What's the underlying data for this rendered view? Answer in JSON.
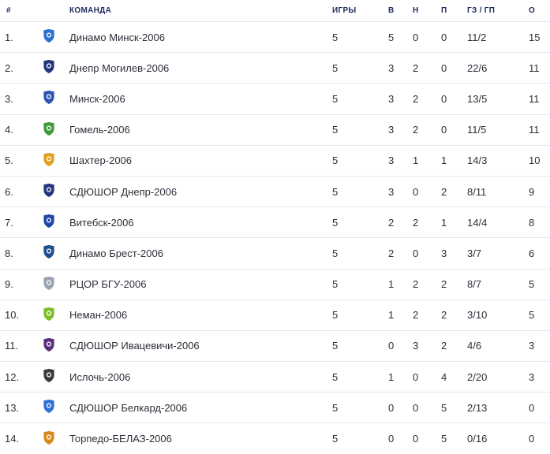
{
  "headers": {
    "num": "#",
    "team": "КОМАНДА",
    "games": "ИГРЫ",
    "wins": "В",
    "draws": "Н",
    "losses": "П",
    "goals": "ГЗ / ГП",
    "points": "О"
  },
  "rows": [
    {
      "num": "1.",
      "name": "Динамо Минск-2006",
      "games": "5",
      "w": "5",
      "d": "0",
      "l": "0",
      "goals": "11/2",
      "pts": "15",
      "icon": "dinamo-minsk-logo-icon",
      "color": "#2a6fd1"
    },
    {
      "num": "2.",
      "name": "Днепр Могилев-2006",
      "games": "5",
      "w": "3",
      "d": "2",
      "l": "0",
      "goals": "22/6",
      "pts": "11",
      "icon": "dnepr-mogilev-logo-icon",
      "color": "#23357e"
    },
    {
      "num": "3.",
      "name": "Минск-2006",
      "games": "5",
      "w": "3",
      "d": "2",
      "l": "0",
      "goals": "13/5",
      "pts": "11",
      "icon": "minsk-logo-icon",
      "color": "#2b54b0"
    },
    {
      "num": "4.",
      "name": "Гомель-2006",
      "games": "5",
      "w": "3",
      "d": "2",
      "l": "0",
      "goals": "11/5",
      "pts": "11",
      "icon": "gomel-logo-icon",
      "color": "#3f9a3a"
    },
    {
      "num": "5.",
      "name": "Шахтер-2006",
      "games": "5",
      "w": "3",
      "d": "1",
      "l": "1",
      "goals": "14/3",
      "pts": "10",
      "icon": "shakhter-logo-icon",
      "color": "#e0a020"
    },
    {
      "num": "6.",
      "name": "СДЮШОР Днепр-2006",
      "games": "5",
      "w": "3",
      "d": "0",
      "l": "2",
      "goals": "8/11",
      "pts": "9",
      "icon": "sdyushor-dnepr-logo-icon",
      "color": "#23357e"
    },
    {
      "num": "7.",
      "name": "Витебск-2006",
      "games": "5",
      "w": "2",
      "d": "2",
      "l": "1",
      "goals": "14/4",
      "pts": "8",
      "icon": "vitebsk-logo-icon",
      "color": "#2045a8"
    },
    {
      "num": "8.",
      "name": "Динамо Брест-2006",
      "games": "5",
      "w": "2",
      "d": "0",
      "l": "3",
      "goals": "3/7",
      "pts": "6",
      "icon": "dinamo-brest-logo-icon",
      "color": "#1f4e8a"
    },
    {
      "num": "9.",
      "name": "РЦОР БГУ-2006",
      "games": "5",
      "w": "1",
      "d": "2",
      "l": "2",
      "goals": "8/7",
      "pts": "5",
      "icon": "rcor-bgu-logo-icon",
      "color": "#9aa3b2"
    },
    {
      "num": "10.",
      "name": "Неман-2006",
      "games": "5",
      "w": "1",
      "d": "2",
      "l": "2",
      "goals": "3/10",
      "pts": "5",
      "icon": "neman-logo-icon",
      "color": "#7bbf2a"
    },
    {
      "num": "11.",
      "name": "СДЮШОР Ивацевичи-2006",
      "games": "5",
      "w": "0",
      "d": "3",
      "l": "2",
      "goals": "4/6",
      "pts": "3",
      "icon": "ivatsevichi-logo-icon",
      "color": "#5b2e7e"
    },
    {
      "num": "12.",
      "name": "Ислочь-2006",
      "games": "5",
      "w": "1",
      "d": "0",
      "l": "4",
      "goals": "2/20",
      "pts": "3",
      "icon": "isloch-logo-icon",
      "color": "#3a3a3a"
    },
    {
      "num": "13.",
      "name": "СДЮШОР Белкард-2006",
      "games": "5",
      "w": "0",
      "d": "0",
      "l": "5",
      "goals": "2/13",
      "pts": "0",
      "icon": "belkard-logo-icon",
      "color": "#2f6fd8"
    },
    {
      "num": "14.",
      "name": "Торпедо-БЕЛАЗ-2006",
      "games": "5",
      "w": "0",
      "d": "0",
      "l": "5",
      "goals": "0/16",
      "pts": "0",
      "icon": "torpedo-belaz-logo-icon",
      "color": "#d98a1c"
    }
  ]
}
